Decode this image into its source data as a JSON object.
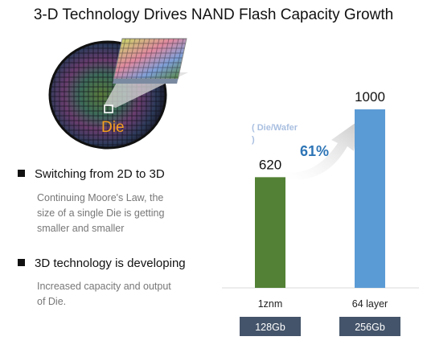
{
  "title": "3-D Technology Drives NAND Flash Capacity Growth",
  "illustration": {
    "die_label": "Die"
  },
  "bullets": [
    {
      "heading": "Switching from 2D to 3D",
      "description": "Continuing Moore's Law, the size of a single Die is getting smaller and smaller",
      "description_lines": [
        "Continuing Moore's Law, the",
        "size of a single Die is getting",
        "smaller and smaller"
      ]
    },
    {
      "heading": "3D technology is developing",
      "description": "Increased capacity and output of Die.",
      "description_lines": [
        "Increased capacity and output",
        "of Die."
      ]
    }
  ],
  "chart_data": {
    "type": "bar",
    "categories": [
      "1znm",
      "64 layer"
    ],
    "sublabels": [
      "128Gb",
      "256Gb"
    ],
    "values": [
      620,
      1000
    ],
    "value_labels": [
      "620",
      "1000"
    ],
    "unit_label_lines": [
      "( Die/Wafer",
      ")"
    ],
    "growth_label": "61%",
    "ylim": [
      0,
      1000
    ],
    "colors": [
      "#538135",
      "#5B9BD5"
    ],
    "sublabel_box_color": "#44546A",
    "growth_color": "#2E75B6",
    "unit_color": "#A9BFE0",
    "grid": false,
    "legend": "none"
  }
}
